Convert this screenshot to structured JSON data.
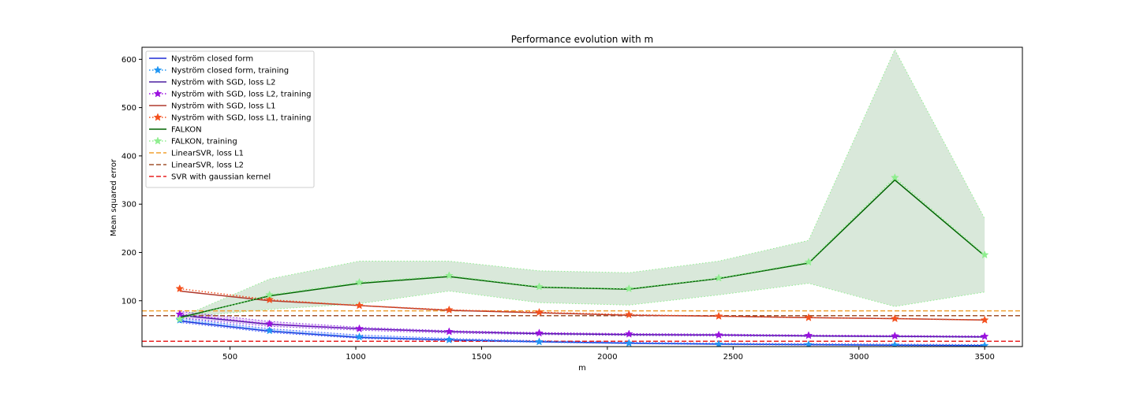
{
  "chart_data": {
    "type": "line",
    "title": "Performance evolution with m",
    "xlabel": "m",
    "ylabel": "Mean squared error",
    "xlim": [
      150,
      3650
    ],
    "ylim": [
      5,
      625
    ],
    "xticks": [
      500,
      1000,
      1500,
      2000,
      2500,
      3000,
      3500
    ],
    "yticks": [
      100,
      200,
      300,
      400,
      500,
      600
    ],
    "grid": false,
    "legend_position": "top-left",
    "x": [
      300,
      657,
      1014,
      1371,
      1729,
      2086,
      2443,
      2800,
      3143,
      3500
    ],
    "bands": [
      {
        "color": "#2e7d32",
        "opacity": 0.18,
        "upper": [
          65,
          145,
          182,
          182,
          162,
          158,
          182,
          225,
          620,
          270
        ],
        "lower": [
          65,
          82,
          94,
          120,
          96,
          91,
          112,
          136,
          88,
          118
        ]
      },
      {
        "color": "#3355ff",
        "opacity": 0.18,
        "upper": [
          64,
          42,
          29,
          22,
          17,
          14,
          12,
          11,
          10,
          9
        ],
        "lower": [
          55,
          34,
          22,
          17,
          14,
          11,
          9,
          8,
          7,
          6
        ]
      },
      {
        "color": "#8a2be2",
        "opacity": 0.18,
        "upper": [
          78,
          57,
          45,
          38,
          34,
          32,
          31,
          29,
          28,
          27
        ],
        "lower": [
          65,
          47,
          39,
          33,
          30,
          28,
          27,
          26,
          25,
          24
        ]
      }
    ],
    "series": [
      {
        "name": "Nyström closed form",
        "color": "#1f2bd6",
        "dash": "solid",
        "marker": "none",
        "values": [
          58,
          37,
          24,
          19,
          15,
          12,
          10,
          9,
          8,
          7
        ]
      },
      {
        "name": "Nyström closed form, training",
        "color": "#2196f3",
        "dash": "dot",
        "marker": "star",
        "values": [
          60,
          38,
          25,
          19,
          15,
          12,
          10,
          9,
          8,
          7
        ]
      },
      {
        "name": "Nyström with SGD, loss L2",
        "color": "#4b1fa0",
        "dash": "solid",
        "marker": "none",
        "values": [
          70,
          51,
          42,
          36,
          32,
          30,
          29,
          27,
          26,
          25
        ]
      },
      {
        "name": "Nyström with SGD, loss L2, training",
        "color": "#9b10e0",
        "dash": "dot",
        "marker": "star",
        "values": [
          72,
          52,
          42,
          36,
          33,
          31,
          29,
          28,
          27,
          26
        ]
      },
      {
        "name": "Nyström with SGD, loss L1",
        "color": "#b03a2e",
        "dash": "solid",
        "marker": "none",
        "values": [
          120,
          100,
          90,
          80,
          75,
          70,
          68,
          65,
          63,
          60
        ]
      },
      {
        "name": "Nyström with SGD, loss L1, training",
        "color": "#f4511e",
        "dash": "dot",
        "marker": "star",
        "values": [
          125,
          102,
          90,
          81,
          76,
          71,
          68,
          65,
          63,
          60
        ]
      },
      {
        "name": "FALKON",
        "color": "#006400",
        "dash": "solid",
        "marker": "none",
        "values": [
          65,
          110,
          136,
          150,
          128,
          124,
          146,
          178,
          350,
          193
        ]
      },
      {
        "name": "FALKON, training",
        "color": "#90ee90",
        "dash": "dot",
        "marker": "star",
        "values": [
          62,
          112,
          138,
          152,
          129,
          125,
          147,
          180,
          355,
          195
        ]
      }
    ],
    "hlines": [
      {
        "name": "LinearSVR, loss L1",
        "color": "#f0a030",
        "dash": "dashed",
        "value": 79
      },
      {
        "name": "LinearSVR, loss L2",
        "color": "#a0522d",
        "dash": "dashed",
        "value": 69
      },
      {
        "name": "SVR with gaussian kernel",
        "color": "#e82020",
        "dash": "dashed",
        "value": 16
      }
    ]
  }
}
